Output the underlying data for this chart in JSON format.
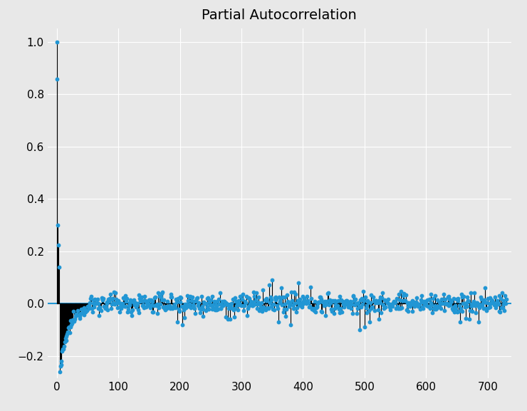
{
  "title": "Partial Autocorrelation",
  "title_fontsize": 14,
  "background_color": "#e8e8e8",
  "stem_color": "black",
  "dot_color": "#2196d4",
  "hline_color": "#2196d4",
  "hline_lw": 1.5,
  "ylim": [
    -0.285,
    1.05
  ],
  "xlim": [
    -15,
    738
  ],
  "n_lags": 730,
  "yticks": [
    -0.2,
    0.0,
    0.2,
    0.4,
    0.6,
    0.8,
    1.0
  ],
  "xticks": [
    0,
    100,
    200,
    300,
    400,
    500,
    600,
    700
  ],
  "grid_color": "white",
  "grid_lw": 0.8,
  "figsize": [
    7.4,
    5.77
  ],
  "dpi": 100,
  "stem_lw": 0.8,
  "dot_size": 10
}
